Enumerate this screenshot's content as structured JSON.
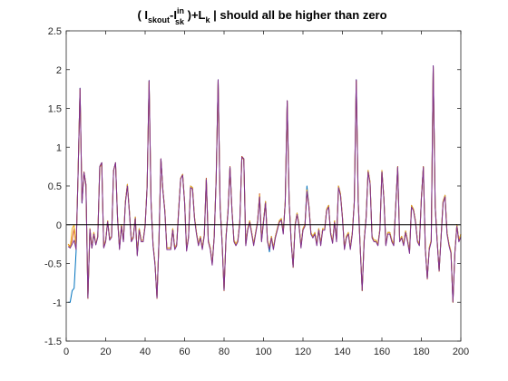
{
  "chart_data": {
    "type": "line",
    "title": {
      "open": "( I",
      "sub1": "skout",
      "dash": "-I",
      "sup2": "in",
      "sub2": "sk",
      "close": " )+L",
      "sub3": "k",
      "tail": "  | should all be higher than zero"
    },
    "xlabel": "",
    "ylabel": "",
    "xlim": [
      0,
      200
    ],
    "ylim": [
      -1.5,
      2.5
    ],
    "xticks": [
      0,
      20,
      40,
      60,
      80,
      100,
      120,
      140,
      160,
      180,
      200
    ],
    "xtick_labels": [
      "0",
      "20",
      "40",
      "60",
      "80",
      "100",
      "120",
      "140",
      "160",
      "180",
      "200"
    ],
    "yticks": [
      -1.5,
      -1,
      -0.5,
      0,
      0.5,
      1,
      1.5,
      2,
      2.5
    ],
    "ytick_labels": [
      "-1.5",
      "-1",
      "-0.5",
      "0",
      "0.5",
      "1",
      "1.5",
      "2",
      "2.5"
    ],
    "grid": false,
    "reference_line": {
      "y": 0,
      "color": "#000000"
    },
    "colors": [
      "#0072BD",
      "#D95319",
      "#EDB120",
      "#7E2F8E"
    ],
    "x": [
      1,
      2,
      3,
      4,
      5,
      6,
      7,
      8,
      9,
      10,
      11,
      12,
      13,
      14,
      15,
      16,
      17,
      18,
      19,
      20,
      21,
      22,
      23,
      24,
      25,
      26,
      27,
      28,
      29,
      30,
      31,
      32,
      33,
      34,
      35,
      36,
      37,
      38,
      39,
      40,
      41,
      42,
      43,
      44,
      45,
      46,
      47,
      48,
      49,
      50,
      51,
      52,
      53,
      54,
      55,
      56,
      57,
      58,
      59,
      60,
      61,
      62,
      63,
      64,
      65,
      66,
      67,
      68,
      69,
      70,
      71,
      72,
      73,
      74,
      75,
      76,
      77,
      78,
      79,
      80,
      81,
      82,
      83,
      84,
      85,
      86,
      87,
      88,
      89,
      90,
      91,
      92,
      93,
      94,
      95,
      96,
      97,
      98,
      99,
      100,
      101,
      102,
      103,
      104,
      105,
      106,
      107,
      108,
      109,
      110,
      111,
      112,
      113,
      114,
      115,
      116,
      117,
      118,
      119,
      120,
      121,
      122,
      123,
      124,
      125,
      126,
      127,
      128,
      129,
      130,
      131,
      132,
      133,
      134,
      135,
      136,
      137,
      138,
      139,
      140,
      141,
      142,
      143,
      144,
      145,
      146,
      147,
      148,
      149,
      150,
      151,
      152,
      153,
      154,
      155,
      156,
      157,
      158,
      159,
      160,
      161,
      162,
      163,
      164,
      165,
      166,
      167,
      168,
      169,
      170,
      171,
      172,
      173,
      174,
      175,
      176,
      177,
      178,
      179,
      180,
      181,
      182,
      183,
      184,
      185,
      186,
      187,
      188,
      189,
      190,
      191,
      192,
      193,
      194,
      195,
      196,
      197,
      198,
      199,
      200
    ],
    "series": [
      {
        "values": [
          -1.0,
          -1.0,
          -0.85,
          -0.82,
          -0.35,
          0.65,
          1.76,
          0.28,
          0.68,
          0.52,
          -0.95,
          -0.05,
          -0.3,
          -0.12,
          -0.25,
          -0.15,
          0.75,
          0.8,
          -0.28,
          -0.2,
          0.05,
          -0.18,
          -0.15,
          0.7,
          0.8,
          0.1,
          -0.3,
          0.0,
          -0.2,
          0.3,
          0.52,
          0.18,
          -0.2,
          -0.15,
          0.1,
          -0.38,
          -0.05,
          -0.2,
          -0.2,
          0.0,
          0.5,
          1.86,
          0.3,
          -0.25,
          -0.5,
          -0.95,
          -0.2,
          0.85,
          0.45,
          0.18,
          -0.3,
          -0.3,
          -0.3,
          -0.05,
          -0.3,
          -0.25,
          0.2,
          0.6,
          0.65,
          0.3,
          -0.32,
          -0.15,
          0.5,
          0.48,
          0.1,
          -0.1,
          -0.25,
          -0.15,
          -0.3,
          -0.12,
          0.6,
          -0.2,
          -0.3,
          -0.5,
          -0.15,
          0.6,
          1.87,
          0.25,
          -0.22,
          -0.85,
          -0.15,
          0.18,
          0.75,
          0.2,
          -0.2,
          -0.25,
          -0.2,
          0.05,
          0.88,
          0.85,
          -0.25,
          -0.05,
          0.05,
          -0.1,
          -0.25,
          -0.1,
          0.05,
          0.38,
          -0.2,
          0.05,
          0.3,
          -0.2,
          -0.35,
          -0.15,
          -0.3,
          -0.15,
          -0.05,
          0.05,
          0.08,
          -0.1,
          0.3,
          1.6,
          0.3,
          -0.2,
          -0.55,
          0.0,
          0.15,
          0.0,
          -0.28,
          -0.05,
          0.0,
          0.5,
          0.25,
          -0.1,
          -0.15,
          -0.1,
          -0.25,
          -0.05,
          -0.25,
          -0.05,
          -0.05,
          0.2,
          0.25,
          -0.1,
          -0.22,
          0.05,
          -0.2,
          0.5,
          0.4,
          0.1,
          -0.3,
          -0.15,
          -0.1,
          -0.3,
          -0.1,
          0.3,
          1.87,
          0.3,
          -0.28,
          -0.85,
          -0.2,
          0.1,
          0.7,
          0.55,
          -0.15,
          -0.2,
          -0.2,
          -0.25,
          -0.05,
          0.7,
          0.35,
          -0.25,
          -0.1,
          -0.1,
          -0.2,
          -0.25,
          0.25,
          0.75,
          -0.2,
          -0.15,
          -0.25,
          -0.08,
          -0.2,
          -0.35,
          0.25,
          0.2,
          0.05,
          -0.2,
          -0.25,
          0.35,
          0.75,
          -0.3,
          -0.7,
          -0.3,
          -0.2,
          2.05,
          0.25,
          -0.2,
          -0.6,
          -0.15,
          0.3,
          0.38,
          -0.1,
          -0.25,
          -0.35,
          -1.0,
          -0.35,
          0.0,
          -0.2,
          -0.15
        ]
      },
      {
        "values": [
          -0.25,
          -0.28,
          -0.2,
          -0.05,
          -0.3,
          0.65,
          1.75,
          0.3,
          0.68,
          0.52,
          -0.95,
          -0.05,
          -0.3,
          -0.1,
          -0.25,
          -0.15,
          0.75,
          0.8,
          -0.28,
          -0.2,
          0.05,
          -0.18,
          -0.15,
          0.7,
          0.8,
          0.1,
          -0.3,
          0.0,
          -0.2,
          0.3,
          0.52,
          0.18,
          -0.2,
          -0.15,
          0.1,
          -0.38,
          -0.05,
          -0.2,
          -0.2,
          0.0,
          0.5,
          1.85,
          0.3,
          -0.25,
          -0.5,
          -0.95,
          -0.2,
          0.85,
          0.45,
          0.18,
          -0.3,
          -0.3,
          -0.3,
          -0.05,
          -0.3,
          -0.25,
          0.2,
          0.6,
          0.65,
          0.3,
          -0.32,
          -0.15,
          0.5,
          0.48,
          0.1,
          -0.1,
          -0.25,
          -0.15,
          -0.3,
          -0.12,
          0.6,
          -0.2,
          -0.3,
          -0.5,
          -0.15,
          0.6,
          1.86,
          0.25,
          -0.22,
          -0.85,
          -0.15,
          0.18,
          0.75,
          0.2,
          -0.2,
          -0.25,
          -0.2,
          0.05,
          0.88,
          0.85,
          -0.25,
          -0.05,
          0.05,
          -0.1,
          -0.25,
          -0.1,
          0.05,
          0.4,
          -0.2,
          0.05,
          0.3,
          -0.2,
          -0.3,
          -0.15,
          -0.3,
          -0.15,
          -0.05,
          0.05,
          0.08,
          -0.1,
          0.3,
          1.6,
          0.3,
          -0.2,
          -0.55,
          0.0,
          0.15,
          0.0,
          -0.28,
          -0.05,
          0.0,
          0.45,
          0.25,
          -0.1,
          -0.15,
          -0.1,
          -0.25,
          -0.05,
          -0.25,
          -0.05,
          -0.05,
          0.2,
          0.25,
          -0.1,
          -0.22,
          0.05,
          -0.2,
          0.5,
          0.4,
          0.1,
          -0.3,
          -0.15,
          -0.1,
          -0.3,
          -0.1,
          0.3,
          1.86,
          0.3,
          -0.28,
          -0.85,
          -0.2,
          0.1,
          0.7,
          0.55,
          -0.15,
          -0.2,
          -0.2,
          -0.25,
          -0.05,
          0.7,
          0.35,
          -0.25,
          -0.1,
          -0.1,
          -0.2,
          -0.25,
          0.25,
          0.75,
          -0.2,
          -0.15,
          -0.25,
          -0.08,
          -0.2,
          -0.35,
          0.25,
          0.2,
          0.05,
          -0.2,
          -0.25,
          0.35,
          0.75,
          -0.3,
          -0.7,
          -0.3,
          -0.2,
          2.04,
          0.25,
          -0.2,
          -0.6,
          -0.15,
          0.3,
          0.38,
          -0.1,
          -0.25,
          -0.35,
          -1.0,
          -0.35,
          0.0,
          -0.2,
          -0.12
        ]
      },
      {
        "values": [
          -0.25,
          -0.3,
          -0.05,
          0.0,
          -0.3,
          0.65,
          1.74,
          0.3,
          0.66,
          0.5,
          -0.93,
          -0.05,
          -0.28,
          -0.1,
          -0.25,
          -0.15,
          0.74,
          0.78,
          -0.28,
          -0.2,
          0.05,
          -0.18,
          -0.15,
          0.7,
          0.78,
          0.1,
          -0.3,
          0.0,
          -0.2,
          0.3,
          0.52,
          0.18,
          -0.2,
          -0.15,
          0.1,
          -0.38,
          -0.05,
          -0.2,
          -0.2,
          0.0,
          0.5,
          1.84,
          0.3,
          -0.25,
          -0.5,
          -0.93,
          -0.2,
          0.84,
          0.45,
          0.18,
          -0.3,
          -0.3,
          -0.3,
          -0.05,
          -0.3,
          -0.25,
          0.2,
          0.6,
          0.65,
          0.3,
          -0.32,
          -0.15,
          0.5,
          0.48,
          0.1,
          -0.1,
          -0.25,
          -0.15,
          -0.3,
          -0.12,
          0.58,
          -0.2,
          -0.3,
          -0.5,
          -0.15,
          0.6,
          1.85,
          0.25,
          -0.22,
          -0.83,
          -0.15,
          0.18,
          0.74,
          0.2,
          -0.2,
          -0.25,
          -0.2,
          0.05,
          0.86,
          0.84,
          -0.25,
          -0.05,
          0.05,
          -0.1,
          -0.25,
          -0.1,
          0.05,
          0.38,
          -0.2,
          0.05,
          0.3,
          -0.2,
          -0.3,
          -0.15,
          -0.3,
          -0.15,
          -0.05,
          0.05,
          0.08,
          -0.1,
          0.3,
          1.58,
          0.3,
          -0.2,
          -0.53,
          0.0,
          0.15,
          0.0,
          -0.28,
          -0.05,
          0.0,
          0.45,
          0.25,
          -0.1,
          -0.15,
          -0.1,
          -0.25,
          -0.05,
          -0.25,
          -0.05,
          -0.05,
          0.2,
          0.25,
          -0.1,
          -0.22,
          0.05,
          -0.2,
          0.5,
          0.4,
          0.1,
          -0.3,
          -0.15,
          -0.1,
          -0.3,
          -0.1,
          0.3,
          1.85,
          0.3,
          -0.28,
          -0.83,
          -0.2,
          0.1,
          0.7,
          0.55,
          -0.15,
          -0.2,
          -0.2,
          -0.25,
          -0.05,
          0.7,
          0.35,
          -0.25,
          -0.1,
          -0.1,
          -0.2,
          -0.25,
          0.25,
          0.74,
          -0.2,
          -0.15,
          -0.25,
          -0.08,
          -0.2,
          -0.35,
          0.25,
          0.2,
          0.05,
          -0.2,
          -0.25,
          0.35,
          0.74,
          -0.3,
          -0.68,
          -0.3,
          -0.2,
          2.03,
          0.25,
          -0.2,
          -0.58,
          -0.15,
          0.3,
          0.38,
          -0.1,
          -0.25,
          -0.35,
          -0.98,
          -0.35,
          0.0,
          -0.2,
          -0.12
        ]
      },
      {
        "values": [
          -0.28,
          -0.3,
          -0.25,
          -0.2,
          -0.32,
          0.64,
          1.76,
          0.28,
          0.67,
          0.5,
          -0.94,
          -0.06,
          -0.3,
          -0.12,
          -0.26,
          -0.16,
          0.75,
          0.8,
          -0.3,
          -0.22,
          0.04,
          -0.2,
          -0.16,
          0.7,
          0.8,
          0.08,
          -0.32,
          -0.02,
          -0.22,
          0.28,
          0.5,
          0.16,
          -0.22,
          -0.17,
          0.08,
          -0.4,
          -0.07,
          -0.22,
          -0.22,
          -0.02,
          0.48,
          1.86,
          0.28,
          -0.27,
          -0.52,
          -0.94,
          -0.22,
          0.85,
          0.44,
          0.16,
          -0.32,
          -0.32,
          -0.32,
          -0.07,
          -0.32,
          -0.27,
          0.18,
          0.59,
          0.64,
          0.28,
          -0.34,
          -0.17,
          0.48,
          0.46,
          0.08,
          -0.12,
          -0.27,
          -0.17,
          -0.32,
          -0.14,
          0.58,
          -0.22,
          -0.32,
          -0.52,
          -0.17,
          0.58,
          1.87,
          0.23,
          -0.24,
          -0.84,
          -0.17,
          0.16,
          0.74,
          0.18,
          -0.22,
          -0.27,
          -0.22,
          0.03,
          0.87,
          0.85,
          -0.27,
          -0.07,
          0.03,
          -0.12,
          -0.27,
          -0.12,
          0.03,
          0.36,
          -0.22,
          0.03,
          0.28,
          -0.22,
          -0.32,
          -0.17,
          -0.32,
          -0.17,
          -0.07,
          0.03,
          0.06,
          -0.12,
          0.28,
          1.6,
          0.28,
          -0.22,
          -0.54,
          -0.02,
          0.13,
          -0.02,
          -0.3,
          -0.07,
          -0.02,
          0.43,
          0.23,
          -0.12,
          -0.17,
          -0.12,
          -0.27,
          -0.07,
          -0.27,
          -0.07,
          -0.07,
          0.18,
          0.23,
          -0.12,
          -0.24,
          0.03,
          -0.22,
          0.48,
          0.38,
          0.08,
          -0.32,
          -0.17,
          -0.12,
          -0.32,
          -0.12,
          0.28,
          1.87,
          0.28,
          -0.3,
          -0.84,
          -0.22,
          0.08,
          0.68,
          0.53,
          -0.17,
          -0.22,
          -0.22,
          -0.27,
          -0.07,
          0.68,
          0.33,
          -0.27,
          -0.12,
          -0.12,
          -0.22,
          -0.27,
          0.23,
          0.74,
          -0.22,
          -0.17,
          -0.27,
          -0.1,
          -0.22,
          -0.37,
          0.23,
          0.18,
          0.03,
          -0.22,
          -0.27,
          0.33,
          0.74,
          -0.32,
          -0.69,
          -0.32,
          -0.22,
          2.05,
          0.23,
          -0.22,
          -0.59,
          -0.17,
          0.28,
          0.36,
          -0.12,
          -0.27,
          -0.37,
          -0.99,
          -0.37,
          -0.02,
          -0.22,
          -0.16
        ]
      }
    ]
  }
}
